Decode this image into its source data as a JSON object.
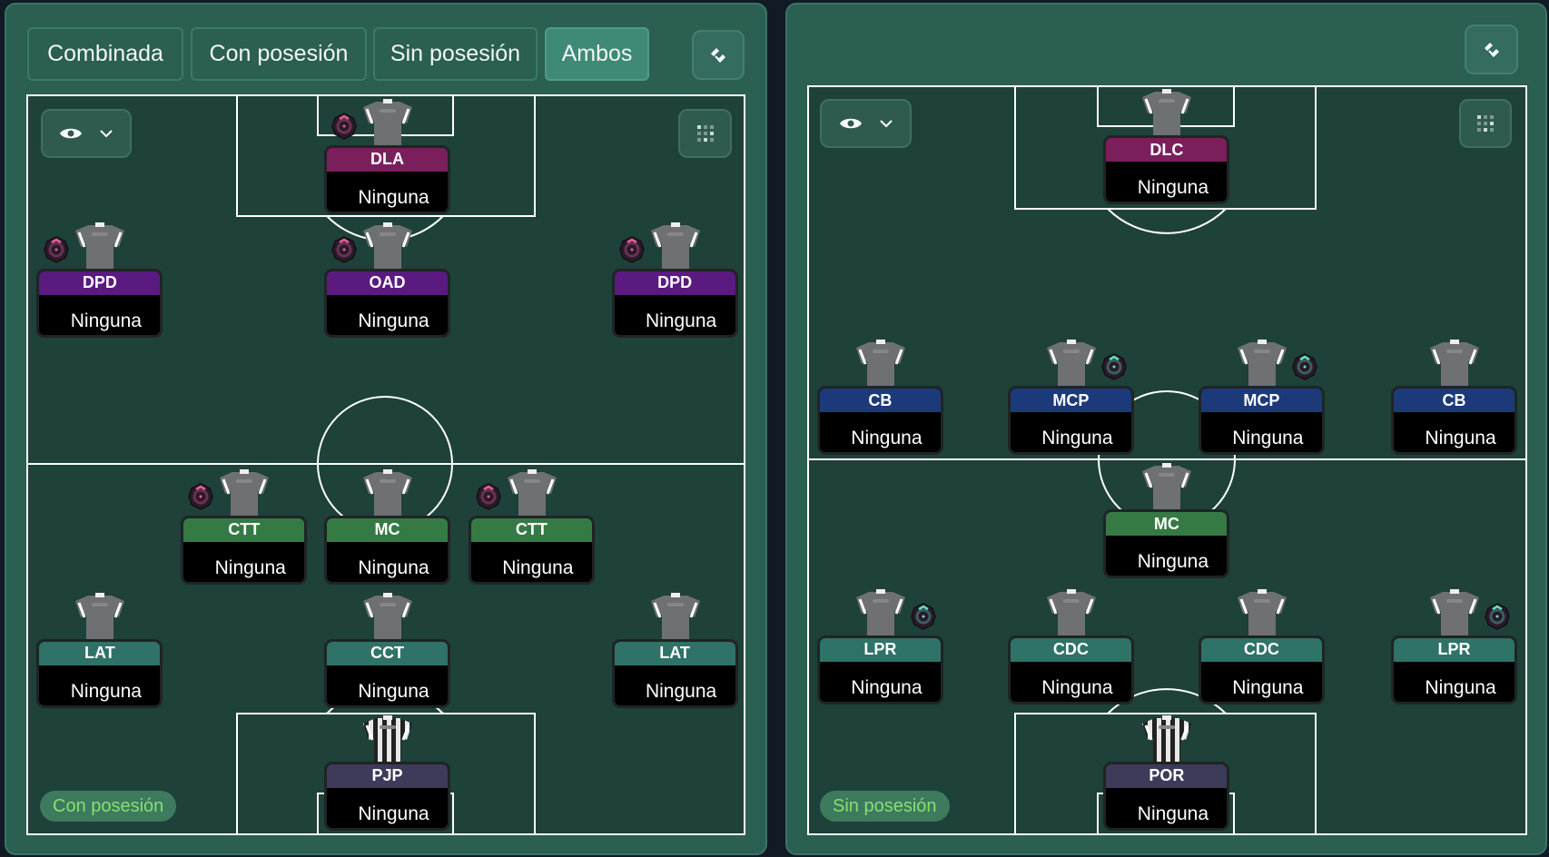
{
  "tabs": [
    {
      "label": "Combinada",
      "active": false
    },
    {
      "label": "Con posesión",
      "active": false
    },
    {
      "label": "Sin posesión",
      "active": false
    },
    {
      "label": "Ambos",
      "active": true
    }
  ],
  "colors": {
    "panel": "#2a5f52",
    "pitch": "#1e4139",
    "attack_forward": "#7a1f5c",
    "attack_mid": "#5a1a80",
    "midfield": "#357a45",
    "defense": "#2f7268",
    "pressing": "#1c3a7a",
    "goalkeeper": "#3e3a5a",
    "badge_pink": "#e0609a",
    "badge_teal": "#5fe0c0",
    "phase_label": "#86e06e"
  },
  "left_panel": {
    "phase_label": "Con posesión",
    "icons": [
      "tactics-board-icon",
      "eye-icon",
      "chevron-down-icon",
      "grid-icon"
    ],
    "players": [
      {
        "role": "DLA",
        "instruction": "Ninguna",
        "group": "attack_forward",
        "badge": true
      },
      {
        "role": "DPD",
        "instruction": "Ninguna",
        "group": "attack_mid",
        "badge": true
      },
      {
        "role": "OAD",
        "instruction": "Ninguna",
        "group": "attack_mid",
        "badge": true
      },
      {
        "role": "DPD",
        "instruction": "Ninguna",
        "group": "attack_mid",
        "badge": true
      },
      {
        "role": "CTT",
        "instruction": "Ninguna",
        "group": "midfield",
        "badge": true
      },
      {
        "role": "MC",
        "instruction": "Ninguna",
        "group": "midfield",
        "badge": false
      },
      {
        "role": "CTT",
        "instruction": "Ninguna",
        "group": "midfield",
        "badge": true
      },
      {
        "role": "LAT",
        "instruction": "Ninguna",
        "group": "defense",
        "badge": false
      },
      {
        "role": "CCT",
        "instruction": "Ninguna",
        "group": "defense",
        "badge": false
      },
      {
        "role": "LAT",
        "instruction": "Ninguna",
        "group": "defense",
        "badge": false
      },
      {
        "role": "PJP",
        "instruction": "Ninguna",
        "group": "goalkeeper",
        "badge": false
      }
    ]
  },
  "right_panel": {
    "phase_label": "Sin posesión",
    "icons": [
      "tactics-board-icon",
      "eye-icon",
      "chevron-down-icon",
      "grid-icon"
    ],
    "players": [
      {
        "role": "DLC",
        "instruction": "Ninguna",
        "group": "attack_forward",
        "badge": false
      },
      {
        "role": "CB",
        "instruction": "Ninguna",
        "group": "pressing",
        "badge": false
      },
      {
        "role": "MCP",
        "instruction": "Ninguna",
        "group": "pressing",
        "badge": true
      },
      {
        "role": "MCP",
        "instruction": "Ninguna",
        "group": "pressing",
        "badge": true
      },
      {
        "role": "CB",
        "instruction": "Ninguna",
        "group": "pressing",
        "badge": false
      },
      {
        "role": "MC",
        "instruction": "Ninguna",
        "group": "midfield",
        "badge": false
      },
      {
        "role": "LPR",
        "instruction": "Ninguna",
        "group": "defense",
        "badge": true
      },
      {
        "role": "CDC",
        "instruction": "Ninguna",
        "group": "defense",
        "badge": false
      },
      {
        "role": "CDC",
        "instruction": "Ninguna",
        "group": "defense",
        "badge": false
      },
      {
        "role": "LPR",
        "instruction": "Ninguna",
        "group": "defense",
        "badge": true
      },
      {
        "role": "POR",
        "instruction": "Ninguna",
        "group": "goalkeeper",
        "badge": false
      }
    ]
  }
}
